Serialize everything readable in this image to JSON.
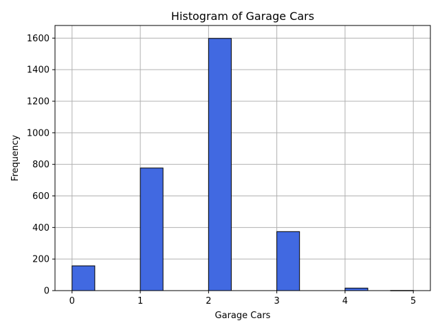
{
  "chart_data": {
    "type": "bar",
    "title": "Histogram of Garage Cars",
    "xlabel": "Garage Cars",
    "ylabel": "Frequency",
    "bins": [
      {
        "x0": 0.0,
        "x1": 0.333,
        "count": 157
      },
      {
        "x0": 1.0,
        "x1": 1.333,
        "count": 777
      },
      {
        "x0": 2.0,
        "x1": 2.333,
        "count": 1598
      },
      {
        "x0": 3.0,
        "x1": 3.333,
        "count": 374
      },
      {
        "x0": 4.0,
        "x1": 4.333,
        "count": 16
      },
      {
        "x0": 4.667,
        "x1": 5.0,
        "count": 1
      }
    ],
    "xlim": [
      -0.25,
      5.25
    ],
    "ylim": [
      0,
      1680
    ],
    "xticks": [
      0,
      1,
      2,
      3,
      4,
      5
    ],
    "yticks": [
      0,
      200,
      400,
      600,
      800,
      1000,
      1200,
      1400,
      1600
    ],
    "grid": true,
    "bar_color": "#4169e1",
    "edge_color": "#000000",
    "grid_color": "#b0b0b0"
  }
}
